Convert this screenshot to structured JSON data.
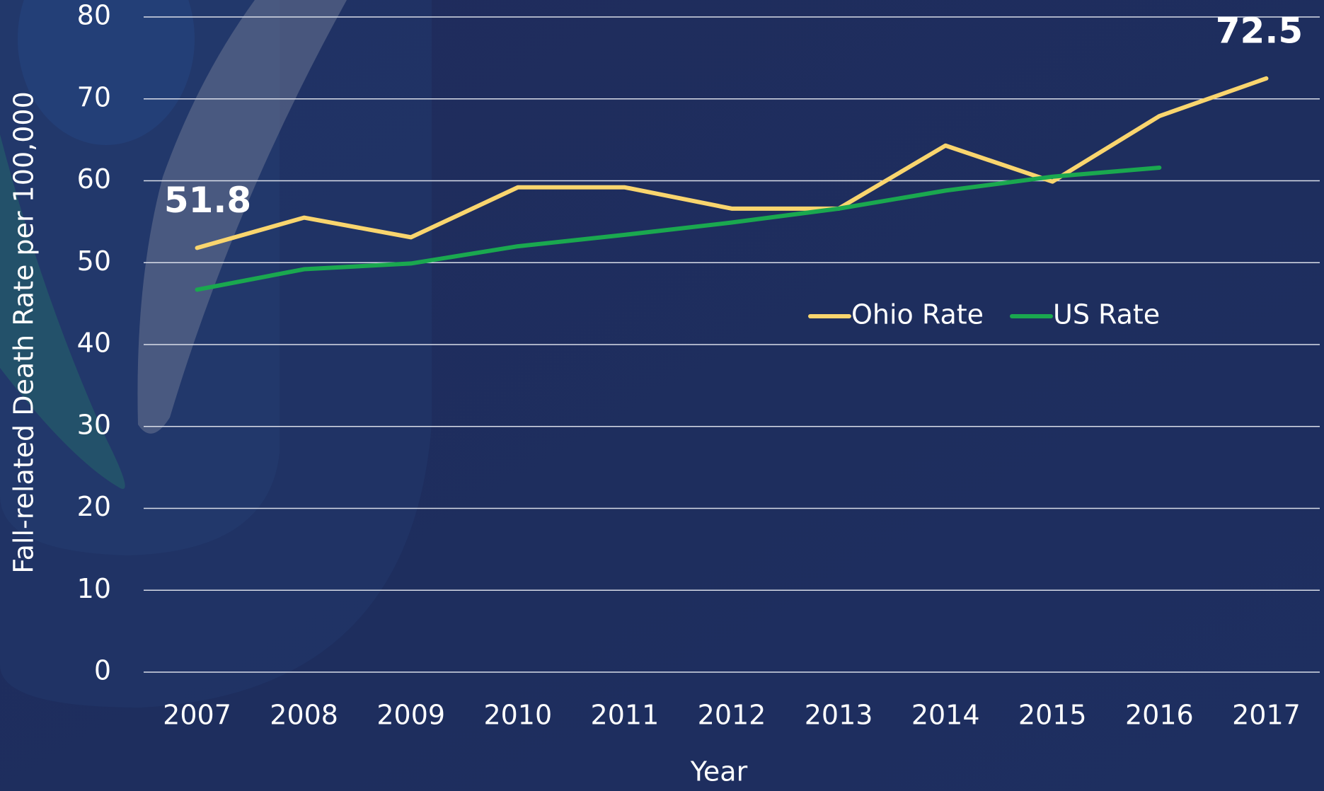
{
  "chart_data": {
    "type": "line",
    "x_label": "Year",
    "y_label": "Fall-related Death Rate per 100,000",
    "categories": [
      "2007",
      "2008",
      "2009",
      "2010",
      "2011",
      "2012",
      "2013",
      "2014",
      "2015",
      "2016",
      "2017"
    ],
    "series": [
      {
        "name": "Ohio Rate",
        "color": "#f9d56e",
        "values": [
          51.8,
          55.5,
          53.1,
          59.2,
          59.2,
          56.6,
          56.6,
          64.3,
          59.9,
          67.9,
          72.5
        ],
        "value_labels": [
          "51.8",
          null,
          null,
          null,
          null,
          null,
          null,
          null,
          null,
          null,
          "72.5"
        ]
      },
      {
        "name": "US Rate",
        "color": "#1aa84f",
        "values": [
          46.7,
          49.2,
          49.9,
          52.0,
          53.4,
          54.9,
          56.6,
          58.8,
          60.5,
          61.6,
          null
        ]
      }
    ],
    "ylim": [
      0,
      80
    ],
    "yticks": [
      0,
      10,
      20,
      30,
      40,
      50,
      60,
      70,
      80
    ],
    "grid": true,
    "legend": "center"
  }
}
